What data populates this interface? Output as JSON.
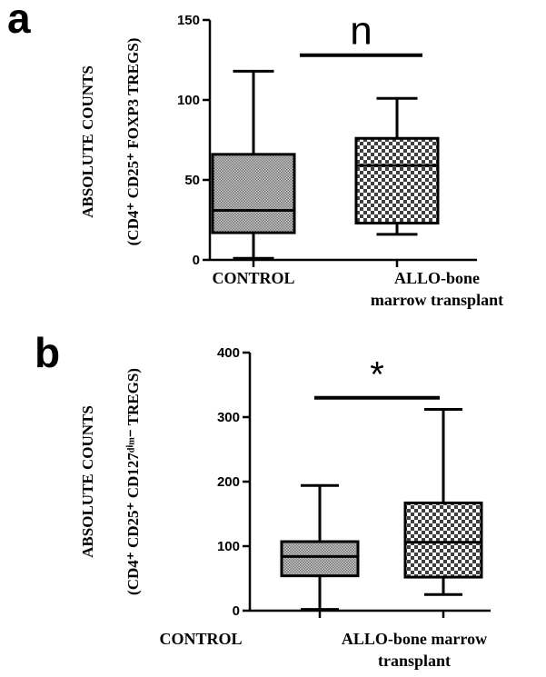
{
  "chart_data": [
    {
      "type": "box",
      "panel_label": "a",
      "ylabel_line1": "ABSOLUTE COUNTS",
      "ylabel_line2": "(CD4⁺ CD25⁺ FOXP3 TREGS)",
      "ylim": [
        0,
        150
      ],
      "yticks": [
        0,
        50,
        100,
        150
      ],
      "categories": [
        "CONTROL",
        "ALLO-bone marrow transplant"
      ],
      "category_label_lines": [
        [
          "CONTROL"
        ],
        [
          "ALLO-bone",
          "marrow transplant"
        ]
      ],
      "boxes": [
        {
          "category": "CONTROL",
          "min": 1,
          "q1": 17,
          "median": 31,
          "q3": 66,
          "max": 118
        },
        {
          "category": "ALLO-bone marrow transplant",
          "min": 16,
          "q1": 23,
          "median": 59,
          "q3": 76,
          "max": 101
        }
      ],
      "significance": {
        "label": "n",
        "y": 128
      }
    },
    {
      "type": "box",
      "panel_label": "b",
      "ylabel_line1": "ABSOLUTE COUNTS",
      "ylabel_line2": "(CD4⁺ CD25⁺ CD127ᵈⁱᵐ⁻ TREGS)",
      "ylim": [
        0,
        400
      ],
      "yticks": [
        0,
        100,
        200,
        300,
        400
      ],
      "categories": [
        "CONTROL",
        "ALLO-bone marrow transplant"
      ],
      "category_label_lines": [
        [
          "CONTROL"
        ],
        [
          "ALLO-bone marrow",
          "transplant"
        ]
      ],
      "boxes": [
        {
          "category": "CONTROL",
          "min": 2,
          "q1": 54,
          "median": 84,
          "q3": 107,
          "max": 194
        },
        {
          "category": "ALLO-bone marrow transplant",
          "min": 25,
          "q1": 52,
          "median": 106,
          "q3": 167,
          "max": 312
        }
      ],
      "significance": {
        "label": "*",
        "y": 330
      }
    }
  ]
}
